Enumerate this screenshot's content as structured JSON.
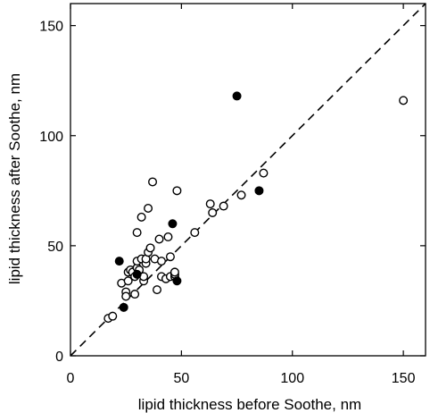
{
  "chart_data": {
    "type": "scatter",
    "title": "",
    "xlabel": "lipid thickness before Soothe, nm",
    "ylabel": "lipid thickness after Soothe, nm",
    "xlim": [
      0,
      160
    ],
    "ylim": [
      0,
      160
    ],
    "x_ticks": [
      0,
      50,
      100,
      150
    ],
    "y_ticks": [
      0,
      50,
      100,
      150
    ],
    "grid": false,
    "legend": "none",
    "reference_line": {
      "style": "dashed",
      "from": [
        0,
        0
      ],
      "to": [
        160,
        160
      ]
    },
    "series": [
      {
        "marker": "open-circle",
        "points": [
          [
            17,
            17
          ],
          [
            19,
            18
          ],
          [
            23,
            33
          ],
          [
            25,
            29
          ],
          [
            25,
            27
          ],
          [
            26,
            34
          ],
          [
            26,
            38
          ],
          [
            27,
            39
          ],
          [
            28,
            38
          ],
          [
            29,
            28
          ],
          [
            29,
            36
          ],
          [
            30,
            40
          ],
          [
            30,
            43
          ],
          [
            30,
            56
          ],
          [
            31,
            39
          ],
          [
            32,
            44
          ],
          [
            32,
            63
          ],
          [
            33,
            34
          ],
          [
            33,
            36
          ],
          [
            34,
            42
          ],
          [
            34,
            44
          ],
          [
            35,
            47
          ],
          [
            35,
            67
          ],
          [
            36,
            49
          ],
          [
            37,
            79
          ],
          [
            38,
            44
          ],
          [
            39,
            30
          ],
          [
            40,
            53
          ],
          [
            41,
            36
          ],
          [
            41,
            43
          ],
          [
            43,
            35
          ],
          [
            44,
            54
          ],
          [
            45,
            36
          ],
          [
            45,
            45
          ],
          [
            47,
            36
          ],
          [
            47,
            37
          ],
          [
            47,
            38
          ],
          [
            48,
            75
          ],
          [
            56,
            56
          ],
          [
            63,
            69
          ],
          [
            64,
            65
          ],
          [
            69,
            68
          ],
          [
            77,
            73
          ],
          [
            87,
            83
          ],
          [
            150,
            116
          ]
        ]
      },
      {
        "marker": "filled-circle",
        "points": [
          [
            22,
            43
          ],
          [
            24,
            22
          ],
          [
            30,
            37
          ],
          [
            46,
            60
          ],
          [
            48,
            34
          ],
          [
            75,
            118
          ],
          [
            85,
            75
          ]
        ]
      }
    ]
  }
}
